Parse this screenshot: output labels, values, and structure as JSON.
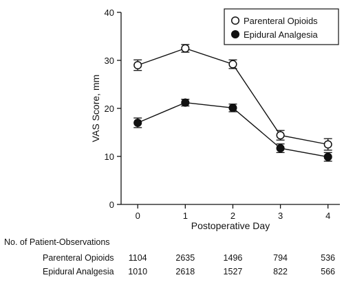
{
  "chart_data": {
    "type": "line",
    "xlabel": "Postoperative Day",
    "ylabel": "VAS Score, mm",
    "x": [
      0,
      1,
      2,
      3,
      4
    ],
    "xlim": [
      -0.35,
      4.25
    ],
    "ylim": [
      0,
      40
    ],
    "yticks": [
      0,
      10,
      20,
      30,
      40
    ],
    "grid": false,
    "legend_position": "top-right",
    "series": [
      {
        "name": "Parenteral Opioids",
        "marker": "open-circle",
        "values": [
          29.0,
          32.5,
          29.2,
          14.4,
          12.5
        ],
        "error": [
          1.1,
          0.8,
          0.9,
          1.0,
          1.2
        ]
      },
      {
        "name": "Epidural Analgesia",
        "marker": "filled-circle",
        "values": [
          17.0,
          21.2,
          20.1,
          11.7,
          9.9
        ],
        "error": [
          1.0,
          0.7,
          0.8,
          0.9,
          0.9
        ]
      }
    ],
    "table": {
      "title": "No. of Patient-Observations",
      "rows": [
        {
          "label": "Parenteral Opioids",
          "values": [
            "1104",
            "2635",
            "1496",
            "794",
            "536"
          ]
        },
        {
          "label": "Epidural Analgesia",
          "values": [
            "1010",
            "2618",
            "1527",
            "822",
            "566"
          ]
        }
      ]
    }
  }
}
